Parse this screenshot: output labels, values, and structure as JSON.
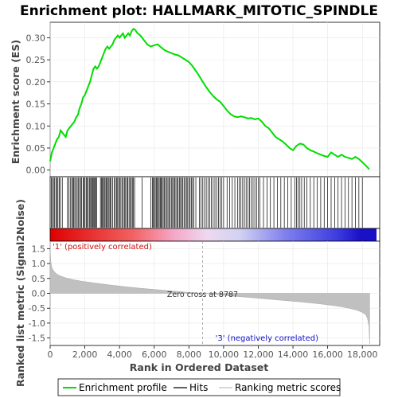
{
  "chart_data": {
    "type": "line",
    "title": "Enrichment plot: HALLMARK_MITOTIC_SPINDLE",
    "top_panel": {
      "ylabel": "Enrichment score (ES)",
      "ylim": [
        -0.015,
        0.335
      ],
      "yticks": [
        "0.00",
        "0.05",
        "0.10",
        "0.15",
        "0.20",
        "0.25",
        "0.30"
      ],
      "ytick_values": [
        0.0,
        0.05,
        0.1,
        0.15,
        0.2,
        0.25,
        0.3
      ],
      "series": [
        {
          "name": "Enrichment profile",
          "color": "#00dd00",
          "x": [
            0,
            100,
            200,
            300,
            400,
            500,
            600,
            700,
            800,
            900,
            1000,
            1100,
            1200,
            1300,
            1400,
            1500,
            1600,
            1700,
            1800,
            1900,
            2000,
            2100,
            2200,
            2300,
            2400,
            2500,
            2600,
            2700,
            2800,
            2900,
            3000,
            3100,
            3200,
            3300,
            3400,
            3500,
            3600,
            3700,
            3800,
            3900,
            4000,
            4100,
            4200,
            4300,
            4400,
            4500,
            4600,
            4700,
            4800,
            4900,
            5000,
            5200,
            5400,
            5600,
            5800,
            6000,
            6200,
            6400,
            6600,
            6800,
            7000,
            7200,
            7400,
            7600,
            7800,
            8000,
            8200,
            8400,
            8600,
            8800,
            9000,
            9200,
            9400,
            9600,
            9800,
            10000,
            10200,
            10400,
            10600,
            10800,
            11000,
            11200,
            11400,
            11600,
            11800,
            12000,
            12200,
            12400,
            12600,
            12800,
            13000,
            13200,
            13400,
            13600,
            13800,
            14000,
            14200,
            14400,
            14600,
            14800,
            15000,
            15200,
            15400,
            15600,
            15800,
            16000,
            16200,
            16400,
            16600,
            16800,
            17000,
            17200,
            17400,
            17600,
            17800,
            18000,
            18200,
            18400
          ],
          "y": [
            0.02,
            0.04,
            0.05,
            0.06,
            0.07,
            0.075,
            0.09,
            0.085,
            0.08,
            0.075,
            0.09,
            0.095,
            0.1,
            0.105,
            0.11,
            0.12,
            0.125,
            0.14,
            0.15,
            0.165,
            0.17,
            0.18,
            0.19,
            0.2,
            0.215,
            0.23,
            0.235,
            0.23,
            0.235,
            0.245,
            0.255,
            0.265,
            0.275,
            0.28,
            0.275,
            0.28,
            0.285,
            0.295,
            0.3,
            0.305,
            0.3,
            0.305,
            0.31,
            0.3,
            0.305,
            0.31,
            0.305,
            0.315,
            0.32,
            0.318,
            0.312,
            0.305,
            0.295,
            0.285,
            0.28,
            0.283,
            0.285,
            0.278,
            0.272,
            0.268,
            0.265,
            0.262,
            0.26,
            0.255,
            0.25,
            0.245,
            0.236,
            0.225,
            0.213,
            0.2,
            0.188,
            0.177,
            0.168,
            0.16,
            0.155,
            0.145,
            0.135,
            0.127,
            0.122,
            0.12,
            0.122,
            0.12,
            0.117,
            0.118,
            0.115,
            0.117,
            0.11,
            0.1,
            0.095,
            0.085,
            0.075,
            0.07,
            0.065,
            0.058,
            0.05,
            0.045,
            0.055,
            0.06,
            0.058,
            0.05,
            0.045,
            0.042,
            0.038,
            0.035,
            0.032,
            0.03,
            0.04,
            0.035,
            0.03,
            0.035,
            0.03,
            0.028,
            0.025,
            0.03,
            0.025,
            0.018,
            0.01,
            0.002
          ]
        }
      ]
    },
    "hits_panel": {
      "name": "Hits",
      "x": [
        70,
        130,
        190,
        260,
        330,
        390,
        450,
        520,
        590,
        700,
        1000,
        1080,
        1160,
        1240,
        1300,
        1350,
        1420,
        1480,
        1560,
        1620,
        1690,
        1760,
        1820,
        1900,
        1960,
        2010,
        2080,
        2140,
        2200,
        2270,
        2330,
        2390,
        2430,
        2480,
        2530,
        2580,
        2620,
        2680,
        2900,
        2960,
        3010,
        3070,
        3120,
        3170,
        3230,
        3290,
        3350,
        3400,
        3460,
        3520,
        3600,
        3700,
        3760,
        3830,
        3890,
        3950,
        4010,
        4080,
        4150,
        4220,
        4290,
        4350,
        4420,
        4480,
        4550,
        4610,
        4680,
        4740,
        4800,
        4870,
        5300,
        5800,
        5900,
        5950,
        6010,
        6060,
        6120,
        6180,
        6240,
        6290,
        6350,
        6410,
        6460,
        6520,
        6580,
        6650,
        6720,
        6790,
        6850,
        6920,
        6990,
        7060,
        7120,
        7180,
        7250,
        7320,
        7380,
        7450,
        7520,
        7580,
        7650,
        7720,
        7790,
        7860,
        7930,
        8000,
        8070,
        8140,
        8210,
        8280,
        8400,
        8600,
        8700,
        8800,
        8900,
        9000,
        9100,
        9200,
        9300,
        9400,
        9500,
        9600,
        9700,
        9800,
        9900,
        10000,
        10200,
        10350,
        10500,
        10650,
        10800,
        10900,
        11000,
        11100,
        11200,
        11300,
        11400,
        11500,
        11600,
        11700,
        11800,
        11900,
        12000,
        12100,
        12300,
        12500,
        12700,
        12900,
        13100,
        13300,
        13500,
        13700,
        13900,
        14100,
        14200,
        14300,
        14400,
        14500,
        14650,
        14800,
        15000,
        15200,
        15400,
        15600,
        15800,
        16000,
        16200,
        16400,
        16600,
        16800,
        17000,
        17200,
        17400,
        17600,
        17800,
        18000
      ]
    },
    "bottom_panel": {
      "ylabel": "Ranked list metric (Signal2Noise)",
      "xlabel": "Rank in Ordered Dataset",
      "xlim": [
        0,
        19000
      ],
      "xticks": [
        "0",
        "2,000",
        "4,000",
        "6,000",
        "8,000",
        "10,000",
        "12,000",
        "14,000",
        "16,000",
        "18,000"
      ],
      "xtick_values": [
        0,
        2000,
        4000,
        6000,
        8000,
        10000,
        12000,
        14000,
        16000,
        18000
      ],
      "ylim": [
        -1.75,
        1.75
      ],
      "yticks": [
        "-1.5",
        "-1.0",
        "-0.5",
        "0.0",
        "0.5",
        "1.0",
        "1.5"
      ],
      "ytick_values": [
        -1.5,
        -1.0,
        -0.5,
        0.0,
        0.5,
        1.0,
        1.5
      ],
      "series": [
        {
          "name": "Ranking metric scores",
          "color": "#c0c0c0",
          "x": [
            0,
            30,
            80,
            150,
            250,
            400,
            600,
            900,
            1300,
            1800,
            2500,
            3300,
            4200,
            5200,
            6200,
            7200,
            8000,
            8787,
            9600,
            10500,
            11500,
            12500,
            13500,
            14500,
            15500,
            16200,
            16800,
            17300,
            17700,
            18000,
            18200,
            18300,
            18380,
            18420
          ],
          "y": [
            1.5,
            1.1,
            0.9,
            0.8,
            0.72,
            0.64,
            0.58,
            0.52,
            0.46,
            0.41,
            0.35,
            0.29,
            0.23,
            0.17,
            0.12,
            0.07,
            0.03,
            0.0,
            -0.04,
            -0.09,
            -0.14,
            -0.19,
            -0.24,
            -0.29,
            -0.35,
            -0.4,
            -0.45,
            -0.51,
            -0.57,
            -0.64,
            -0.72,
            -0.85,
            -1.1,
            -1.7
          ]
        }
      ],
      "zero_cross_rank": 8787,
      "annotations": {
        "positive": "'1' (positively correlated)",
        "zero": "Zero cross at 8787",
        "negative": "'3' (negatively correlated)"
      }
    },
    "legend": {
      "placement": "bottom",
      "items": [
        {
          "label": "Enrichment profile",
          "color": "#00dd00"
        },
        {
          "label": "Hits",
          "color": "#000000"
        },
        {
          "label": "Ranking metric scores",
          "color": "#c0c0c0"
        }
      ]
    },
    "grid": true
  }
}
